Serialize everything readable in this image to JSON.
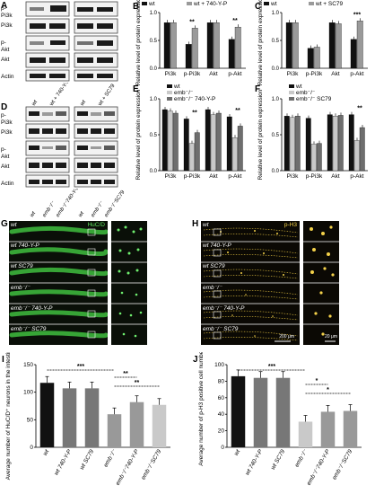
{
  "panels": {
    "A": {
      "letter": "A",
      "rows": [
        "p-Pi3k",
        "Pi3k",
        "p-Akt",
        "Akt",
        "Actin"
      ],
      "lanes": [
        "wt",
        "wt + 740-Y-P",
        "wt",
        "wt + SC79"
      ]
    },
    "D": {
      "letter": "D",
      "rows": [
        "p-Pi3k",
        "Pi3k",
        "p-Akt",
        "Akt",
        "Actin"
      ],
      "lanes": [
        "wt",
        "emb⁻/⁻",
        "emb⁻/⁻740-Y-P",
        "wt",
        "emb⁻/⁻",
        "emb⁻/⁻SC79"
      ]
    },
    "G": {
      "letter": "G",
      "stain": "HuC/D",
      "rows": [
        "wt",
        "wt 740-Y-P",
        "wt SC79",
        "emb⁻/⁻",
        "emb⁻/⁻ 740-Y-P",
        "emb⁻/⁻  SC79"
      ]
    },
    "H": {
      "letter": "H",
      "stain": "p-H3",
      "rows": [
        "wt",
        "wt 740-Y-P",
        "wt SC79",
        "emb⁻/⁻",
        "emb⁻/⁻ 740-Y-P",
        "emb⁻/⁻ SC79"
      ],
      "scale_main": "200 μm",
      "scale_inset": "20 μm"
    }
  },
  "colors": {
    "black": "#111111",
    "gray": "#9a9a9a",
    "dgray": "#6e6e6e",
    "lgray": "#c9c9c9",
    "green": "#3fbf3f",
    "yellow": "#e8c640"
  },
  "chart_data": [
    {
      "id": "B",
      "type": "bar",
      "letter": "B",
      "ylabel": "Relative level of protein expression",
      "ylim": [
        0,
        1
      ],
      "yticks": [
        "0.0",
        "0.5",
        "1.0"
      ],
      "categories": [
        "Pi3k",
        "p-Pi3k",
        "Akt",
        "p-Akt"
      ],
      "series": [
        {
          "name": "wt",
          "color": "#111111",
          "values": [
            0.82,
            0.43,
            0.82,
            0.52
          ]
        },
        {
          "name": "wt + 740-Y-P",
          "color": "#9a9a9a",
          "values": [
            0.82,
            0.72,
            0.82,
            0.74
          ]
        }
      ],
      "significance": [
        "**",
        "**"
      ]
    },
    {
      "id": "C",
      "type": "bar",
      "letter": "C",
      "ylabel": "Relative level of protein expression",
      "ylim": [
        0,
        1
      ],
      "yticks": [
        "0.0",
        "0.5",
        "1.0"
      ],
      "categories": [
        "Pi3k",
        "p-Pi3k",
        "Akt",
        "p-Akt"
      ],
      "series": [
        {
          "name": "wt",
          "color": "#111111",
          "values": [
            0.82,
            0.36,
            0.82,
            0.52
          ]
        },
        {
          "name": "wt + SC79",
          "color": "#9a9a9a",
          "values": [
            0.82,
            0.38,
            0.8,
            0.85
          ]
        }
      ],
      "significance": [
        "***"
      ]
    },
    {
      "id": "E",
      "type": "bar",
      "letter": "E",
      "ylabel": "Relative level of protein expression",
      "ylim": [
        0,
        1
      ],
      "yticks": [
        "0.0",
        "0.5",
        "1.0"
      ],
      "categories": [
        "Pi3k",
        "p-Pi3k",
        "Akt",
        "p-Akt"
      ],
      "series": [
        {
          "name": "wt",
          "color": "#111111",
          "values": [
            0.85,
            0.72,
            0.85,
            0.75
          ]
        },
        {
          "name": "emb⁻/⁻",
          "color": "#c9c9c9",
          "values": [
            0.83,
            0.38,
            0.78,
            0.46
          ]
        },
        {
          "name": "emb⁻/⁻ 740-Y-P",
          "color": "#6e6e6e",
          "values": [
            0.8,
            0.53,
            0.8,
            0.62
          ]
        }
      ],
      "significance": [
        "**",
        "**"
      ]
    },
    {
      "id": "F",
      "type": "bar",
      "letter": "F",
      "ylabel": "Relative level of protein expression",
      "ylim": [
        0,
        1
      ],
      "yticks": [
        "0.0",
        "0.5",
        "1.0"
      ],
      "categories": [
        "Pi3k",
        "p-Pi3k",
        "Akt",
        "p-Akt"
      ],
      "series": [
        {
          "name": "wt",
          "color": "#111111",
          "values": [
            0.76,
            0.73,
            0.78,
            0.78
          ]
        },
        {
          "name": "emb⁻/⁻",
          "color": "#c9c9c9",
          "values": [
            0.74,
            0.37,
            0.76,
            0.42
          ]
        },
        {
          "name": "emb⁻/⁻ SC79",
          "color": "#6e6e6e",
          "values": [
            0.76,
            0.38,
            0.77,
            0.6
          ]
        }
      ],
      "significance": [
        "**"
      ]
    },
    {
      "id": "I",
      "type": "bar",
      "letter": "I",
      "ylabel": "Average number of HuC/D⁺ neurons in the intestinal tract",
      "ylim": [
        0,
        150
      ],
      "yticks": [
        "0",
        "50",
        "100",
        "150"
      ],
      "categories": [
        "wt",
        "wt 740-Y-P",
        "wt SC79",
        "emb⁻/⁻",
        "emb⁻/⁻740-Y-P",
        "emb⁻/⁻SC79"
      ],
      "values": [
        117,
        107,
        107,
        60,
        82,
        77
      ],
      "colors": [
        "#111111",
        "#777777",
        "#777777",
        "#999999",
        "#999999",
        "#c9c9c9"
      ],
      "significance": [
        "***",
        "**",
        "**"
      ]
    },
    {
      "id": "J",
      "type": "bar",
      "letter": "J",
      "ylabel": "Average number of p-H3 positive cell numbers",
      "ylim": [
        0,
        100
      ],
      "yticks": [
        "0",
        "20",
        "40",
        "60",
        "80",
        "100"
      ],
      "categories": [
        "wt",
        "wt 740-Y-P",
        "wt SC79",
        "emb⁻/⁻",
        "emb⁻/⁻740-Y-P",
        "emb⁻/⁻SC79"
      ],
      "values": [
        86,
        84,
        84,
        31,
        43,
        44
      ],
      "colors": [
        "#111111",
        "#777777",
        "#777777",
        "#c9c9c9",
        "#999999",
        "#999999"
      ],
      "significance": [
        "***",
        "*",
        "*"
      ]
    }
  ]
}
